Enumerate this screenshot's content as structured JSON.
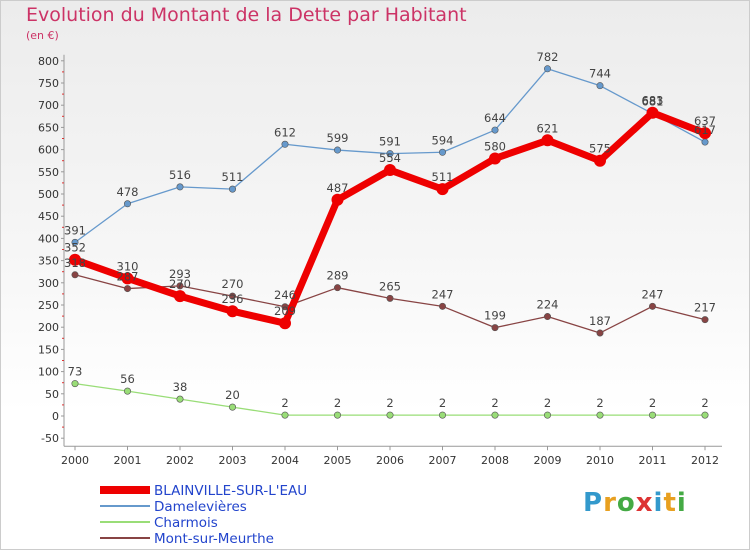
{
  "header": {
    "title": "Evolution du Montant de la Dette par Habitant",
    "unit": "(en €)"
  },
  "brand": {
    "text": "Proxiti",
    "letters": [
      "P",
      "r",
      "o",
      "x",
      "i",
      "t",
      "i"
    ],
    "colors": [
      "#3399cc",
      "#e8a020",
      "#44aa44",
      "#dd3333",
      "#3399cc",
      "#e8a020",
      "#44aa44"
    ]
  },
  "chart_data": {
    "type": "line",
    "title": "Evolution du Montant de la Dette par Habitant",
    "ylabel": "(en €)",
    "xlabel": "",
    "ylim": [
      -50,
      800
    ],
    "yticks": [
      -50,
      0,
      50,
      100,
      150,
      200,
      250,
      300,
      350,
      400,
      450,
      500,
      550,
      600,
      650,
      700,
      750,
      800
    ],
    "x": [
      "2000",
      "2001",
      "2002",
      "2003",
      "2004",
      "2005",
      "2006",
      "2007",
      "2008",
      "2009",
      "2010",
      "2011",
      "2012"
    ],
    "grid": false,
    "legend_position": "bottom-left",
    "series": [
      {
        "name": "BLAINVILLE-SUR-L'EAU",
        "color": "#ee0000",
        "bold": true,
        "values": [
          352,
          310,
          270,
          236,
          209,
          487,
          554,
          511,
          580,
          621,
          575,
          683,
          637
        ]
      },
      {
        "name": "Damelevières",
        "color": "#6699cc",
        "bold": false,
        "values": [
          391,
          478,
          516,
          511,
          612,
          599,
          591,
          594,
          644,
          782,
          744,
          681,
          617
        ]
      },
      {
        "name": "Charmois",
        "color": "#99dd77",
        "bold": false,
        "values": [
          73,
          56,
          38,
          20,
          2,
          2,
          2,
          2,
          2,
          2,
          2,
          2,
          2
        ]
      },
      {
        "name": "Mont-sur-Meurthe",
        "color": "#884444",
        "bold": false,
        "values": [
          318,
          287,
          293,
          270,
          246,
          289,
          265,
          247,
          199,
          224,
          187,
          247,
          217
        ]
      }
    ]
  }
}
